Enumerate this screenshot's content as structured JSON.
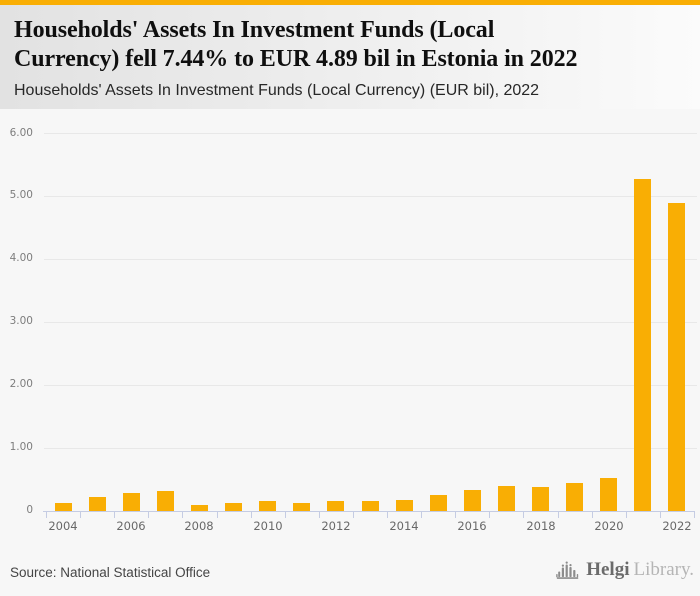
{
  "header": {
    "title": "Households' Assets In Investment Funds (Local Currency) fell 7.44% to EUR 4.89 bil in Estonia in 2022",
    "title_lines": [
      "Households' Assets In Investment Funds (Local",
      "Currency) fell 7.44% to EUR 4.89 bil in Estonia in 2022"
    ],
    "subtitle": "Households' Assets In Investment Funds (Local Currency) (EUR bil), 2022"
  },
  "chart_data": {
    "type": "bar",
    "title": "Households' Assets In Investment Funds (Local Currency) (EUR bil), 2022",
    "categories": [
      "2004",
      "2005",
      "2006",
      "2007",
      "2008",
      "2009",
      "2010",
      "2011",
      "2012",
      "2013",
      "2014",
      "2015",
      "2016",
      "2017",
      "2018",
      "2019",
      "2020",
      "2021",
      "2022"
    ],
    "values": [
      0.13,
      0.22,
      0.28,
      0.32,
      0.1,
      0.13,
      0.16,
      0.12,
      0.16,
      0.16,
      0.17,
      0.26,
      0.34,
      0.4,
      0.38,
      0.45,
      0.52,
      5.28,
      4.89
    ],
    "ylim": [
      0,
      6
    ],
    "ytick_labels": [
      "0",
      "1.00",
      "2.00",
      "3.00",
      "4.00",
      "5.00",
      "6.00"
    ],
    "xtick_labels": [
      "2004",
      "2006",
      "2008",
      "2010",
      "2012",
      "2014",
      "2016",
      "2018",
      "2020",
      "2022"
    ],
    "grid": true,
    "legend_position": "none",
    "bar_color": "#F9AE04",
    "last_value": "4.89",
    "change_pct": "-7.44%"
  },
  "footer": {
    "source": "Source: National Statistical Office",
    "logo": {
      "brand_primary": "Helgi",
      "brand_secondary": "Library.",
      "icon": "helgi-logo-icon"
    }
  },
  "colors": {
    "accent_orange": "#F9AE04",
    "axis_line": "#C5CCE3",
    "gridline": "#E8E8E8",
    "title_text": "#0F0F0F",
    "axis_text": "#7D7D7D"
  }
}
